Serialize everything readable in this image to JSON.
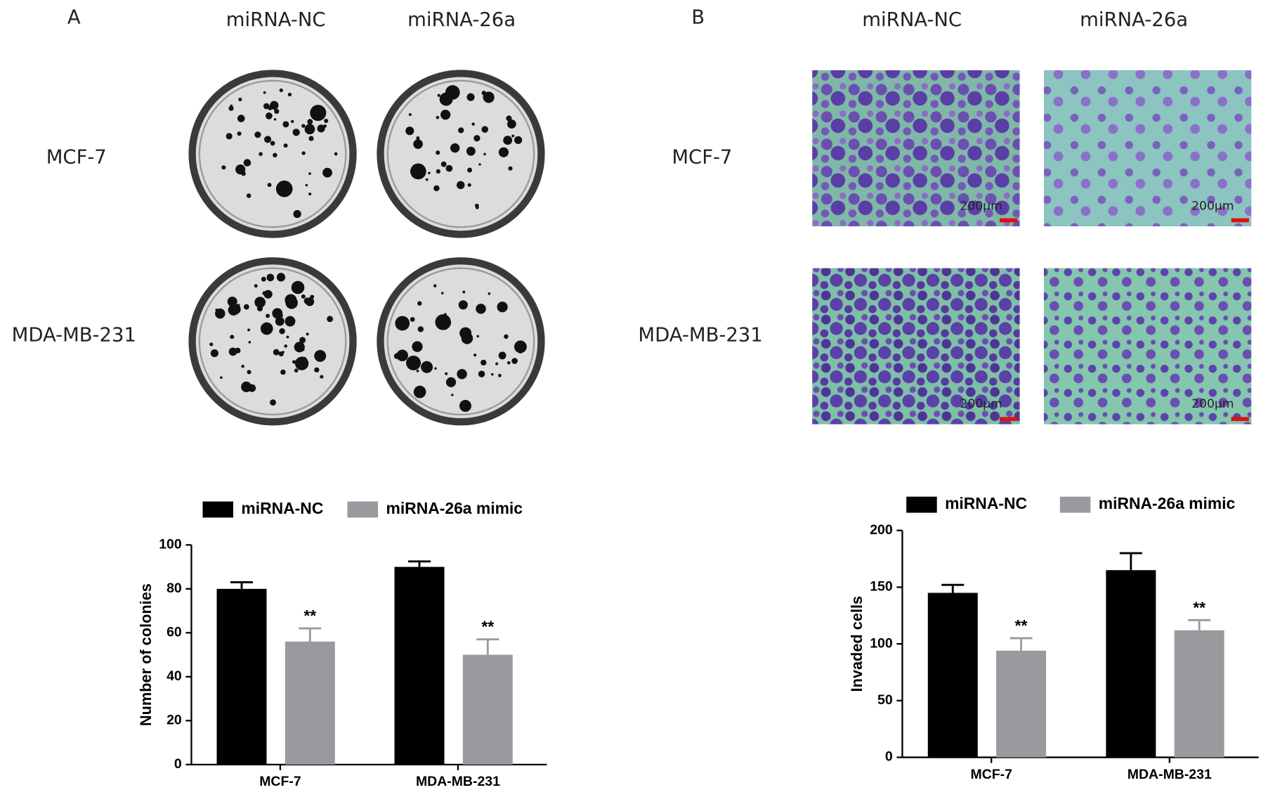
{
  "panel_a": {
    "label": "A",
    "columns": [
      "miRNA-NC",
      "miRNA-26a"
    ],
    "rows": [
      "MCF-7",
      "MDA-MB-231"
    ]
  },
  "panel_b": {
    "label": "B",
    "columns": [
      "miRNA-NC",
      "miRNA-26a"
    ],
    "rows": [
      "MCF-7",
      "MDA-MB-231"
    ],
    "scale_bar": "200μm"
  },
  "chart_data": [
    {
      "type": "bar",
      "y_label": "Number of colonies",
      "categories": [
        "MCF-7",
        "MDA-MB-231"
      ],
      "series": [
        {
          "name": "miRNA-NC",
          "color": "#000000",
          "values": [
            80,
            90
          ],
          "errors": [
            3,
            2.5
          ]
        },
        {
          "name": "miRNA-26a mimic",
          "color": "#9a9a9e",
          "values": [
            56,
            50
          ],
          "errors": [
            6,
            7
          ],
          "annotations": [
            "**",
            "**"
          ]
        }
      ],
      "ylim": [
        0,
        100
      ],
      "yticks": [
        0,
        20,
        40,
        60,
        80,
        100
      ]
    },
    {
      "type": "bar",
      "y_label": "Invaded cells",
      "categories": [
        "MCF-7",
        "MDA-MB-231"
      ],
      "series": [
        {
          "name": "miRNA-NC",
          "color": "#000000",
          "values": [
            145,
            165
          ],
          "errors": [
            7,
            15
          ]
        },
        {
          "name": "miRNA-26a mimic",
          "color": "#9a9a9e",
          "values": [
            94,
            112
          ],
          "errors": [
            11,
            9
          ],
          "annotations": [
            "**",
            "**"
          ]
        }
      ],
      "ylim": [
        0,
        200
      ],
      "yticks": [
        0,
        50,
        100,
        150,
        200
      ]
    }
  ]
}
